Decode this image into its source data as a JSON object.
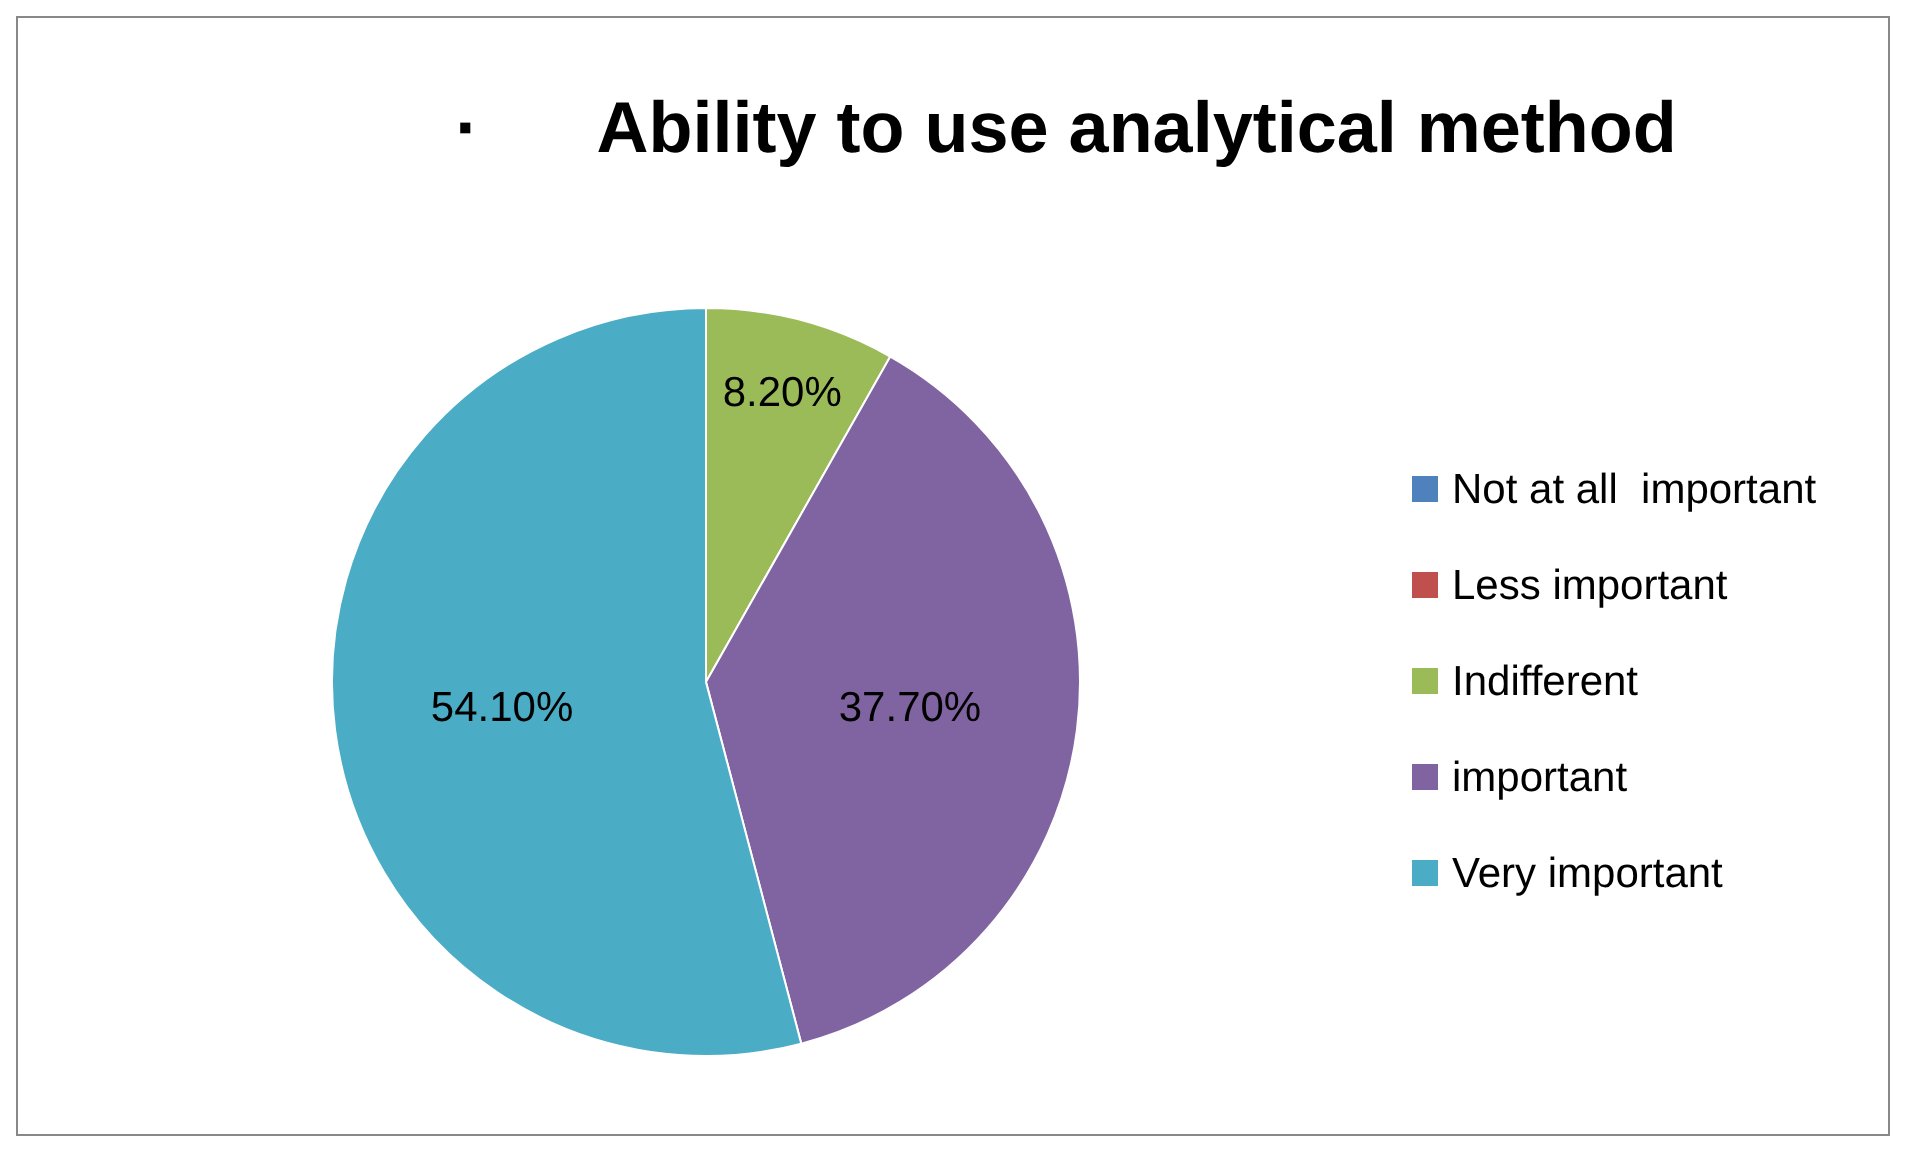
{
  "chart_data": {
    "type": "pie",
    "title": "·      Ability to use analytical method",
    "categories": [
      "Not at all  important",
      "Less important",
      "Indifferent",
      "important",
      "Very important"
    ],
    "values": [
      0,
      0,
      8.2,
      37.7,
      54.1
    ],
    "colors": [
      "#4f81bd",
      "#c0504d",
      "#9bbb59",
      "#8064a2",
      "#4bacc6"
    ],
    "value_labels": [
      null,
      null,
      "8.20%",
      "37.70%",
      "54.10%"
    ],
    "legend": "right"
  }
}
